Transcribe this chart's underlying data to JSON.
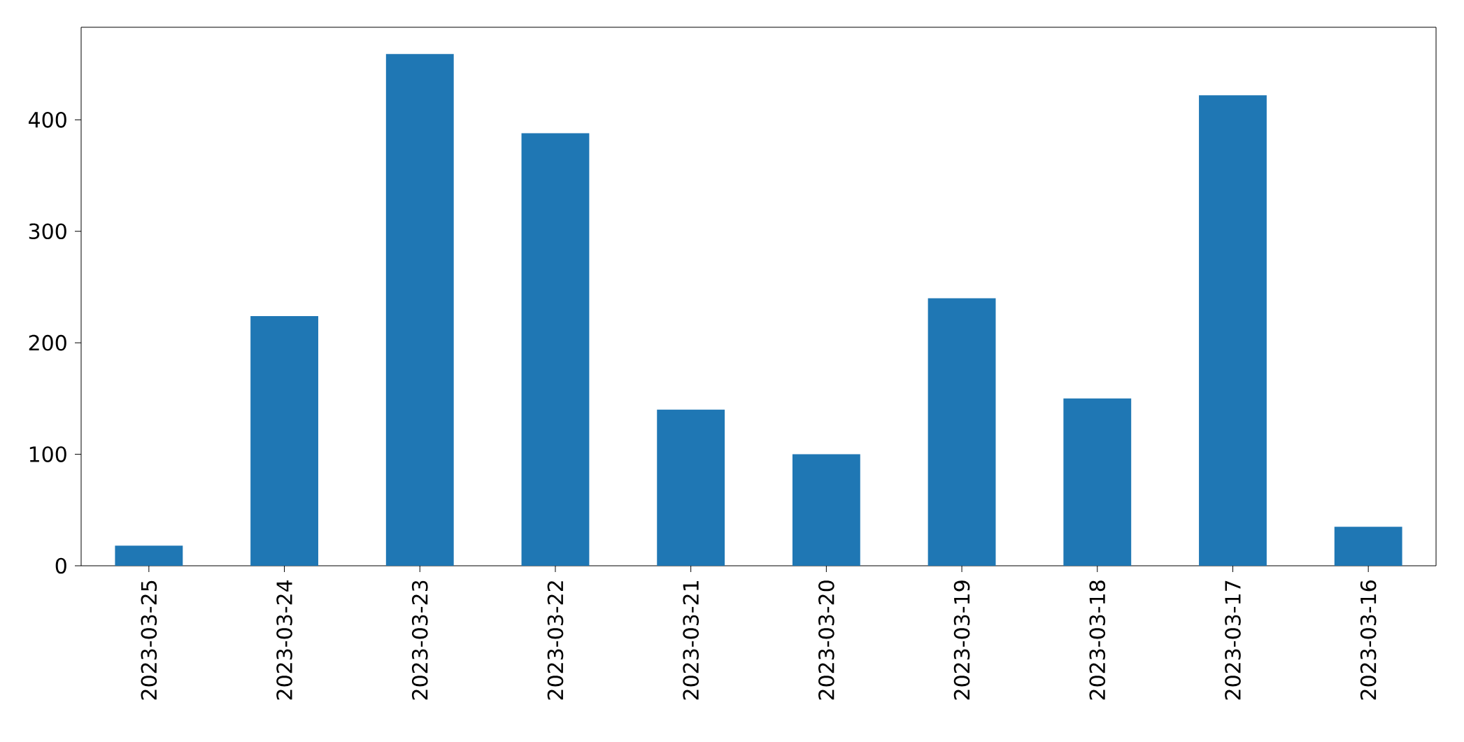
{
  "chart_data": {
    "type": "bar",
    "categories": [
      "2023-03-25",
      "2023-03-24",
      "2023-03-23",
      "2023-03-22",
      "2023-03-21",
      "2023-03-20",
      "2023-03-19",
      "2023-03-18",
      "2023-03-17",
      "2023-03-16"
    ],
    "values": [
      18,
      224,
      459,
      388,
      140,
      100,
      240,
      150,
      422,
      35
    ],
    "color": "#1f77b4",
    "ylim": [
      0,
      483
    ],
    "yticks": [
      0,
      100,
      200,
      300,
      400
    ]
  }
}
